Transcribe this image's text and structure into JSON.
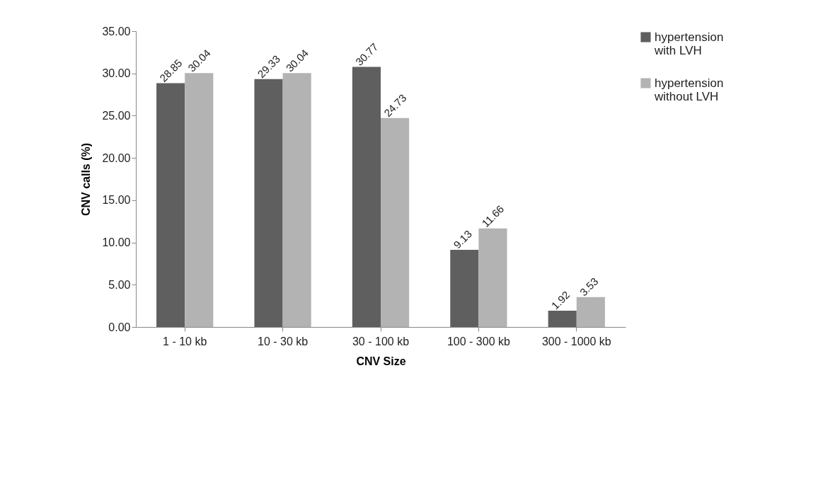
{
  "chart_data": {
    "type": "bar",
    "xlabel": "CNV Size",
    "ylabel": "CNV calls (%)",
    "categories": [
      "1 - 10 kb",
      "10 - 30 kb",
      "30 - 100 kb",
      "100 - 300 kb",
      "300 - 1000 kb"
    ],
    "series": [
      {
        "name": "hypertension with LVH",
        "color": "#5f5f5f",
        "values": [
          28.85,
          29.33,
          30.77,
          9.13,
          1.92
        ]
      },
      {
        "name": "hypertension without LVH",
        "color": "#b3b3b3",
        "values": [
          30.04,
          30.04,
          24.73,
          11.66,
          3.53
        ]
      }
    ],
    "ylim": [
      0,
      35
    ],
    "yticks": [
      {
        "value": 0,
        "label": "0.00"
      },
      {
        "value": 5,
        "label": "5.00"
      },
      {
        "value": 10,
        "label": "10.00"
      },
      {
        "value": 15,
        "label": "15.00"
      },
      {
        "value": 20,
        "label": "20.00"
      },
      {
        "value": 25,
        "label": "25.00"
      },
      {
        "value": 30,
        "label": "30.00"
      },
      {
        "value": 35,
        "label": "35.00"
      }
    ],
    "data_labels": true,
    "legend": "right",
    "grid": false
  }
}
